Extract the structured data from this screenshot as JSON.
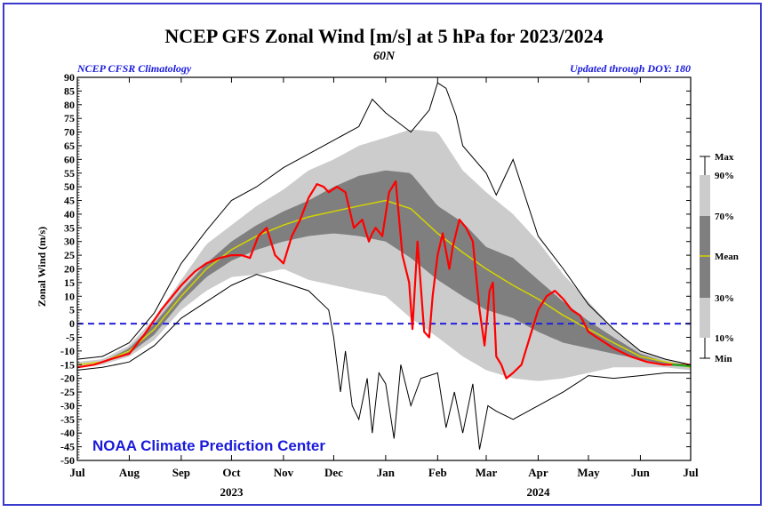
{
  "chart_data": {
    "type": "line",
    "title": "NCEP GFS Zonal Wind [m/s] at 5 hPa for 2023/2024",
    "subtitle": "60N",
    "left_note": "NCEP CFSR Climatology",
    "right_note": "Updated through DOY: 180",
    "watermark": "NOAA Climate Prediction Center",
    "ylabel": "Zonal Wind (m/s)",
    "ylim": [
      -50,
      90
    ],
    "yticks": [
      90,
      85,
      80,
      75,
      70,
      65,
      60,
      55,
      50,
      45,
      40,
      35,
      30,
      25,
      20,
      15,
      10,
      5,
      0,
      -5,
      -10,
      -15,
      -20,
      -25,
      -30,
      -35,
      -40,
      -45,
      -50
    ],
    "xlim": [
      0,
      366
    ],
    "month_labels": [
      {
        "label": "Jul",
        "day": 0
      },
      {
        "label": "Aug",
        "day": 31
      },
      {
        "label": "Sep",
        "day": 62
      },
      {
        "label": "Oct",
        "day": 92
      },
      {
        "label": "Nov",
        "day": 123
      },
      {
        "label": "Dec",
        "day": 153
      },
      {
        "label": "Jan",
        "day": 184
      },
      {
        "label": "Feb",
        "day": 215
      },
      {
        "label": "Mar",
        "day": 244
      },
      {
        "label": "Apr",
        "day": 275
      },
      {
        "label": "May",
        "day": 305
      },
      {
        "label": "Jun",
        "day": 336
      },
      {
        "label": "Jul",
        "day": 366
      }
    ],
    "year_labels": [
      {
        "label": "2023",
        "day": 92
      },
      {
        "label": "2024",
        "day": 275
      }
    ],
    "zero_line": 0,
    "legend_labels": [
      "Max",
      "90%",
      "70%",
      "Mean",
      "30%",
      "10%",
      "Min"
    ],
    "colors": {
      "band_10_90": "#cccccc",
      "band_30_70": "#7f7f7f",
      "mean": "#d4d400",
      "current": "#ff0000",
      "minmax": "#000000",
      "zero": "#2020dd",
      "text_blue": "#1a1adb",
      "forecast": "#22aa22"
    },
    "series": [
      {
        "name": "Max",
        "x": [
          0,
          15,
          31,
          46,
          62,
          77,
          92,
          107,
          123,
          138,
          153,
          168,
          176,
          184,
          199,
          210,
          215,
          220,
          226,
          230,
          244,
          250,
          260,
          275,
          290,
          305,
          320,
          336,
          351,
          366
        ],
        "y": [
          -13,
          -12,
          -7,
          4,
          22,
          34,
          45,
          50,
          57,
          62,
          67,
          72,
          82,
          77,
          70,
          78,
          88,
          86,
          76,
          65,
          55,
          47,
          60,
          32,
          20,
          7,
          -2,
          -10,
          -13,
          -15
        ]
      },
      {
        "name": "p90",
        "x": [
          0,
          15,
          31,
          46,
          62,
          77,
          92,
          107,
          123,
          138,
          153,
          168,
          184,
          199,
          215,
          230,
          244,
          260,
          275,
          290,
          305,
          320,
          336,
          351,
          366
        ],
        "y": [
          -14,
          -13,
          -8,
          2,
          16,
          29,
          36,
          43,
          49,
          56,
          60,
          65,
          68,
          71,
          70,
          56,
          48,
          40,
          30,
          18,
          8,
          -2,
          -10,
          -13,
          -15
        ]
      },
      {
        "name": "p70",
        "x": [
          0,
          15,
          31,
          46,
          62,
          77,
          92,
          107,
          123,
          138,
          153,
          168,
          184,
          199,
          215,
          230,
          244,
          260,
          275,
          290,
          305,
          320,
          336,
          351,
          366
        ],
        "y": [
          -15,
          -14,
          -9,
          0,
          12,
          22,
          30,
          36,
          41,
          45,
          50,
          54,
          56,
          55,
          43,
          37,
          28,
          24,
          16,
          8,
          1,
          -5,
          -11,
          -14,
          -16
        ]
      },
      {
        "name": "Mean",
        "x": [
          0,
          15,
          31,
          46,
          62,
          77,
          92,
          107,
          123,
          138,
          153,
          168,
          184,
          199,
          215,
          230,
          244,
          260,
          275,
          290,
          305,
          320,
          336,
          351,
          366
        ],
        "y": [
          -15,
          -14,
          -10,
          -2,
          10,
          20,
          27,
          32,
          36,
          39,
          41,
          43,
          45,
          42,
          33,
          26,
          20,
          14,
          9,
          3,
          -2,
          -7,
          -12,
          -14,
          -16
        ]
      },
      {
        "name": "p30",
        "x": [
          0,
          15,
          31,
          46,
          62,
          77,
          92,
          107,
          123,
          138,
          153,
          168,
          184,
          199,
          215,
          230,
          244,
          260,
          275,
          290,
          305,
          320,
          336,
          351,
          366
        ],
        "y": [
          -15,
          -14,
          -11,
          -4,
          8,
          17,
          23,
          27,
          30,
          32,
          33,
          32,
          30,
          24,
          16,
          10,
          5,
          2,
          -3,
          -7,
          -9,
          -11,
          -13,
          -15,
          -16
        ]
      },
      {
        "name": "p10",
        "x": [
          0,
          15,
          31,
          46,
          62,
          77,
          92,
          107,
          123,
          138,
          153,
          168,
          184,
          199,
          215,
          230,
          244,
          260,
          275,
          290,
          305,
          320,
          336,
          351,
          366
        ],
        "y": [
          -16,
          -15,
          -12,
          -6,
          5,
          12,
          17,
          18,
          20,
          16,
          14,
          12,
          10,
          2,
          -5,
          -12,
          -17,
          -20,
          -21,
          -20,
          -18,
          -16,
          -16,
          -16,
          -17
        ]
      },
      {
        "name": "Min",
        "x": [
          0,
          15,
          31,
          46,
          62,
          77,
          92,
          107,
          123,
          138,
          150,
          153,
          157,
          160,
          164,
          168,
          173,
          176,
          180,
          184,
          189,
          193,
          199,
          205,
          215,
          220,
          225,
          230,
          236,
          240,
          245,
          250,
          260,
          275,
          290,
          305,
          320,
          336,
          351,
          366
        ],
        "y": [
          -17,
          -16,
          -14,
          -8,
          2,
          8,
          14,
          18,
          15,
          12,
          5,
          -5,
          -25,
          -10,
          -30,
          -35,
          -20,
          -40,
          -18,
          -22,
          -42,
          -15,
          -30,
          -20,
          -18,
          -38,
          -25,
          -40,
          -22,
          -46,
          -30,
          -32,
          -35,
          -30,
          -25,
          -19,
          -20,
          -19,
          -18,
          -18
        ]
      },
      {
        "name": "Current",
        "x": [
          0,
          10,
          20,
          31,
          40,
          50,
          62,
          70,
          77,
          85,
          92,
          98,
          103,
          108,
          113,
          118,
          123,
          128,
          133,
          138,
          143,
          147,
          150,
          155,
          160,
          165,
          170,
          174,
          176,
          178,
          182,
          186,
          190,
          194,
          198,
          200,
          203,
          207,
          210,
          212,
          215,
          218,
          222,
          224,
          228,
          232,
          236,
          240,
          243,
          246,
          248,
          250,
          253,
          256,
          260,
          265,
          270,
          275,
          280,
          285,
          290,
          295,
          300,
          305,
          310,
          320,
          330,
          340,
          350,
          360,
          366
        ],
        "y": [
          -16,
          -15,
          -13,
          -11,
          -4,
          5,
          14,
          19,
          22,
          24,
          25,
          25,
          24,
          32,
          35,
          25,
          22,
          32,
          38,
          46,
          51,
          50,
          48,
          50,
          48,
          35,
          38,
          30,
          33,
          35,
          32,
          48,
          52,
          25,
          15,
          -2,
          30,
          -3,
          -5,
          10,
          25,
          33,
          20,
          28,
          38,
          35,
          30,
          5,
          -8,
          12,
          15,
          -12,
          -15,
          -20,
          -18,
          -15,
          -5,
          5,
          10,
          12,
          9,
          5,
          3,
          -3,
          -5,
          -9,
          -12,
          -14,
          -15,
          -15,
          -15
        ]
      }
    ]
  }
}
